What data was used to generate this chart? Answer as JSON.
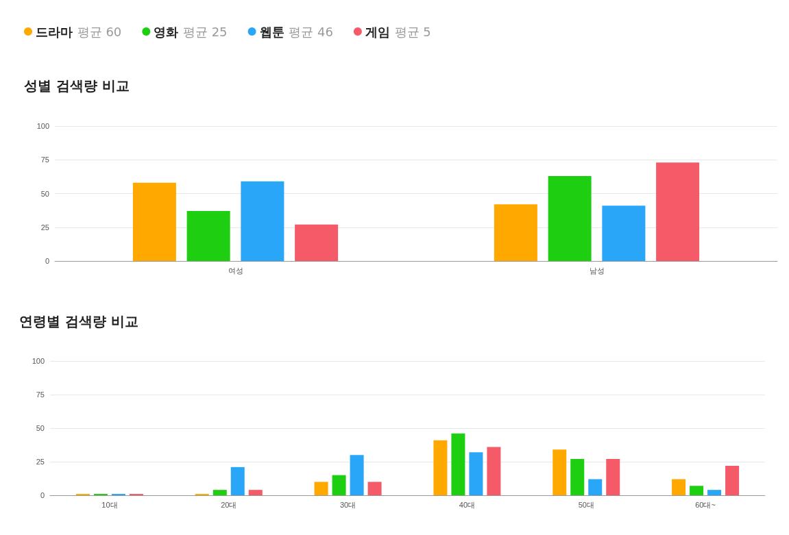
{
  "chart_data": [
    {
      "type": "bar",
      "title": "성별 검색량 비교",
      "categories": [
        "여성",
        "남성"
      ],
      "series": [
        {
          "name": "드라마",
          "color": "#ffa800",
          "values": [
            58,
            42
          ]
        },
        {
          "name": "영화",
          "color": "#1ecf11",
          "values": [
            37,
            63
          ]
        },
        {
          "name": "웹툰",
          "color": "#29a6f7",
          "values": [
            59,
            41
          ]
        },
        {
          "name": "게임",
          "color": "#f45a68",
          "values": [
            27,
            73
          ]
        }
      ],
      "annotations": [
        "평균 60",
        "평균 25",
        "평균 46",
        "평균 5"
      ],
      "ylim": [
        0,
        100
      ],
      "yticks": [
        0,
        25,
        50,
        75,
        100
      ],
      "grid": "y",
      "legend": "top left"
    },
    {
      "type": "bar",
      "title": "연령별 검색량 비교",
      "categories": [
        "10대",
        "20대",
        "30대",
        "40대",
        "50대",
        "60대~"
      ],
      "series": [
        {
          "color": "#ffa800",
          "values": [
            1,
            1,
            10,
            41,
            34,
            12
          ]
        },
        {
          "color": "#1ecf11",
          "values": [
            1,
            4,
            15,
            46,
            27,
            7
          ]
        },
        {
          "color": "#29a6f7",
          "values": [
            1,
            21,
            30,
            32,
            12,
            4
          ]
        },
        {
          "color": "#f45a68",
          "values": [
            1,
            4,
            10,
            36,
            27,
            22
          ]
        }
      ],
      "ylim": [
        0,
        100
      ],
      "yticks": [
        0,
        25,
        50,
        75,
        100
      ],
      "grid": "y"
    }
  ]
}
